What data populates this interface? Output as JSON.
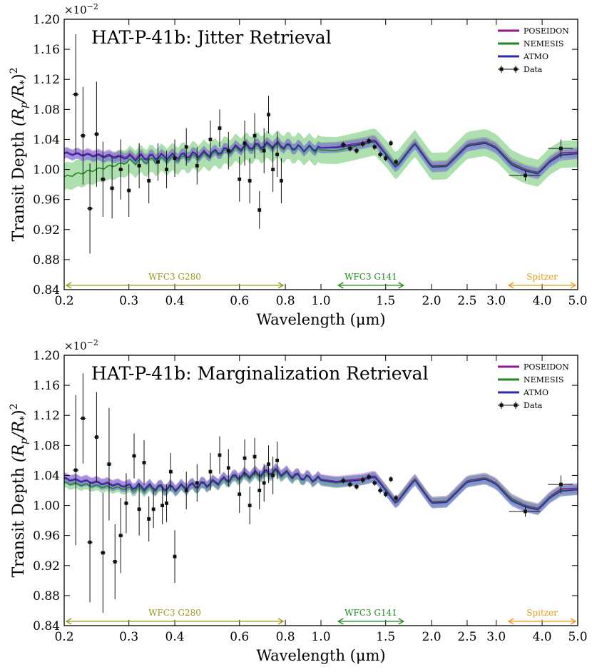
{
  "chart_data": [
    {
      "type": "line",
      "title": "HAT-P-41b: Jitter Retrieval",
      "xlabel": "Wavelength (μm)",
      "ylabel": "Transit Depth (R_p/R_*)^2",
      "ylabel_main": "Transit Depth ",
      "ylabel_math": "(R",
      "ylabel_sub_p": "p",
      "ylabel_slash": "/R",
      "ylabel_sub_star": "*",
      "ylabel_close": ")",
      "ylabel_sup": "2",
      "y_multiplier_base": "×10",
      "y_multiplier_exp": "−2",
      "x_scale": "log",
      "xlim": [
        0.2,
        5.0
      ],
      "ylim": [
        0.84,
        1.2
      ],
      "xticks": [
        0.2,
        0.3,
        0.4,
        0.6,
        0.8,
        1.0,
        1.5,
        2.0,
        2.5,
        3.0,
        4.0,
        5.0
      ],
      "xtick_labels": [
        "0.2",
        "0.3",
        "0.4",
        "0.6",
        "0.8",
        "1.0",
        "1.5",
        "2.0",
        "2.5",
        "3.0",
        "4.0",
        "5.0"
      ],
      "yticks": [
        0.84,
        0.88,
        0.92,
        0.96,
        1.0,
        1.04,
        1.08,
        1.12,
        1.16,
        1.2
      ],
      "ytick_labels": [
        "0.84",
        "0.88",
        "0.92",
        "0.96",
        "1.00",
        "1.04",
        "1.08",
        "1.12",
        "1.16",
        "1.20"
      ],
      "grid": false,
      "legend_position": "top-right",
      "legend": [
        "POSEIDON",
        "NEMESIS",
        "ATMO",
        "Data"
      ],
      "series": [
        {
          "name": "POSEIDON",
          "color": "#8b1a8b",
          "band": "#c77dcc",
          "x": [
            0.2,
            0.3,
            0.4,
            0.5,
            0.6,
            0.75,
            0.9,
            1.1,
            1.3,
            1.4,
            1.5,
            1.6,
            1.8,
            2.0,
            2.2,
            2.5,
            2.8,
            3.0,
            3.3,
            3.6,
            3.9,
            4.2,
            4.5,
            5.0
          ],
          "y": [
            1.022,
            1.017,
            1.018,
            1.022,
            1.03,
            1.034,
            1.028,
            1.03,
            1.036,
            1.04,
            1.022,
            1.004,
            1.036,
            1.005,
            1.006,
            1.033,
            1.037,
            1.03,
            1.009,
            1.0,
            0.996,
            1.012,
            1.022,
            1.023
          ]
        },
        {
          "name": "NEMESIS",
          "color": "#1f8a1f",
          "band": "#6cc56c",
          "x": [
            0.2,
            0.3,
            0.4,
            0.5,
            0.6,
            0.75,
            0.9,
            1.1,
            1.3,
            1.4,
            1.5,
            1.6,
            1.8,
            2.0,
            2.2,
            2.5,
            2.8,
            3.0,
            3.3,
            3.6,
            3.9,
            4.2,
            4.5,
            5.0
          ],
          "y": [
            0.99,
            1.01,
            1.014,
            1.019,
            1.027,
            1.031,
            1.027,
            1.025,
            1.033,
            1.037,
            1.022,
            1.004,
            1.035,
            1.004,
            1.005,
            1.032,
            1.036,
            1.029,
            1.008,
            0.999,
            0.995,
            1.011,
            1.02,
            1.021
          ]
        },
        {
          "name": "ATMO",
          "color": "#2b2bb0",
          "band": "#6f6fe0",
          "x": [
            0.2,
            0.3,
            0.4,
            0.5,
            0.6,
            0.75,
            0.9,
            1.1,
            1.3,
            1.4,
            1.5,
            1.6,
            1.8,
            2.0,
            2.2,
            2.5,
            2.8,
            3.0,
            3.3,
            3.6,
            3.9,
            4.2,
            4.5,
            5.0
          ],
          "y": [
            1.021,
            1.015,
            1.017,
            1.021,
            1.029,
            1.033,
            1.028,
            1.029,
            1.034,
            1.038,
            1.02,
            1.002,
            1.034,
            1.003,
            1.004,
            1.031,
            1.035,
            1.028,
            1.006,
            0.998,
            0.994,
            1.01,
            1.019,
            1.021
          ]
        },
        {
          "name": "Data",
          "color": "#111111",
          "x": [
            0.215,
            0.225,
            0.235,
            0.245,
            0.255,
            0.27,
            0.285,
            0.3,
            0.32,
            0.34,
            0.36,
            0.38,
            0.4,
            0.43,
            0.46,
            0.5,
            0.53,
            0.56,
            0.6,
            0.62,
            0.64,
            0.66,
            0.68,
            0.7,
            0.72,
            0.74,
            0.76,
            0.78,
            1.15,
            1.2,
            1.25,
            1.3,
            1.35,
            1.4,
            1.45,
            1.5,
            1.55,
            1.6,
            3.6,
            4.5
          ],
          "y": [
            1.1,
            1.045,
            0.948,
            1.047,
            0.987,
            0.975,
            1.0,
            0.972,
            1.005,
            0.985,
            1.01,
            1.0,
            1.015,
            1.03,
            1.005,
            1.04,
            1.055,
            1.025,
            0.987,
            1.035,
            0.985,
            1.045,
            0.946,
            1.025,
            1.073,
            1.0,
            1.02,
            0.985,
            1.033,
            1.028,
            1.025,
            1.034,
            1.038,
            1.03,
            1.02,
            1.015,
            1.035,
            1.01,
            0.992,
            1.028
          ],
          "yerr": [
            0.08,
            0.065,
            0.06,
            0.07,
            0.05,
            0.04,
            0.04,
            0.035,
            0.03,
            0.03,
            0.025,
            0.025,
            0.025,
            0.025,
            0.025,
            0.025,
            0.025,
            0.025,
            0.03,
            0.03,
            0.03,
            0.03,
            0.025,
            0.03,
            0.025,
            0.03,
            0.03,
            0.03,
            0.004,
            0.004,
            0.004,
            0.004,
            0.004,
            0.004,
            0.004,
            0.004,
            0.004,
            0.004,
            0.007,
            0.012
          ]
        }
      ],
      "annotations": [
        {
          "text": "WFC3 G280",
          "x_range": [
            0.2,
            0.8
          ],
          "color": "#9a9a1a"
        },
        {
          "text": "WFC3 G141",
          "x_range": [
            1.1,
            1.7
          ],
          "color": "#1f8a1f"
        },
        {
          "text": "Spitzer",
          "x_range": [
            3.2,
            5.0
          ],
          "color": "#e69a1a"
        }
      ]
    },
    {
      "type": "line",
      "title": "HAT-P-41b: Marginalization Retrieval",
      "xlabel": "Wavelength (μm)",
      "ylabel": "Transit Depth (R_p/R_*)^2",
      "ylabel_main": "Transit Depth ",
      "ylabel_math": "(R",
      "ylabel_sub_p": "p",
      "ylabel_slash": "/R",
      "ylabel_sub_star": "*",
      "ylabel_close": ")",
      "ylabel_sup": "2",
      "y_multiplier_base": "×10",
      "y_multiplier_exp": "−2",
      "x_scale": "log",
      "xlim": [
        0.2,
        5.0
      ],
      "ylim": [
        0.84,
        1.2
      ],
      "xticks": [
        0.2,
        0.3,
        0.4,
        0.6,
        0.8,
        1.0,
        1.5,
        2.0,
        2.5,
        3.0,
        4.0,
        5.0
      ],
      "xtick_labels": [
        "0.2",
        "0.3",
        "0.4",
        "0.6",
        "0.8",
        "1.0",
        "1.5",
        "2.0",
        "2.5",
        "3.0",
        "4.0",
        "5.0"
      ],
      "yticks": [
        0.84,
        0.88,
        0.92,
        0.96,
        1.0,
        1.04,
        1.08,
        1.12,
        1.16,
        1.2
      ],
      "ytick_labels": [
        "0.84",
        "0.88",
        "0.92",
        "0.96",
        "1.00",
        "1.04",
        "1.08",
        "1.12",
        "1.16",
        "1.20"
      ],
      "grid": false,
      "legend_position": "top-right",
      "legend": [
        "POSEIDON",
        "NEMESIS",
        "ATMO",
        "Data"
      ],
      "series": [
        {
          "name": "POSEIDON",
          "color": "#8b1a8b",
          "band": "#c77dcc",
          "x": [
            0.2,
            0.3,
            0.4,
            0.5,
            0.6,
            0.75,
            0.9,
            1.1,
            1.3,
            1.4,
            1.5,
            1.6,
            1.8,
            2.0,
            2.2,
            2.5,
            2.8,
            3.0,
            3.3,
            3.6,
            3.9,
            4.2,
            4.5,
            5.0
          ],
          "y": [
            1.036,
            1.026,
            1.024,
            1.03,
            1.04,
            1.046,
            1.038,
            1.032,
            1.036,
            1.04,
            1.022,
            1.004,
            1.036,
            1.005,
            1.006,
            1.033,
            1.037,
            1.03,
            1.009,
            1.0,
            0.996,
            1.012,
            1.022,
            1.023
          ]
        },
        {
          "name": "NEMESIS",
          "color": "#1f8a1f",
          "band": "#6cc56c",
          "x": [
            0.2,
            0.3,
            0.4,
            0.5,
            0.6,
            0.75,
            0.9,
            1.1,
            1.3,
            1.4,
            1.5,
            1.6,
            1.8,
            2.0,
            2.2,
            2.5,
            2.8,
            3.0,
            3.3,
            3.6,
            3.9,
            4.2,
            4.5,
            5.0
          ],
          "y": [
            1.03,
            1.022,
            1.022,
            1.028,
            1.037,
            1.043,
            1.036,
            1.03,
            1.034,
            1.038,
            1.021,
            1.003,
            1.035,
            1.004,
            1.005,
            1.032,
            1.036,
            1.029,
            1.008,
            0.999,
            0.995,
            1.011,
            1.02,
            1.021
          ]
        },
        {
          "name": "ATMO",
          "color": "#2b2bb0",
          "band": "#6f6fe0",
          "x": [
            0.2,
            0.3,
            0.4,
            0.5,
            0.6,
            0.75,
            0.9,
            1.1,
            1.3,
            1.4,
            1.5,
            1.6,
            1.8,
            2.0,
            2.2,
            2.5,
            2.8,
            3.0,
            3.3,
            3.6,
            3.9,
            4.2,
            4.5,
            5.0
          ],
          "y": [
            1.035,
            1.025,
            1.023,
            1.029,
            1.039,
            1.045,
            1.037,
            1.031,
            1.034,
            1.038,
            1.02,
            1.002,
            1.034,
            1.003,
            1.004,
            1.031,
            1.035,
            1.028,
            1.006,
            0.998,
            0.994,
            1.01,
            1.019,
            1.021
          ]
        },
        {
          "name": "Data",
          "color": "#111111",
          "x": [
            0.215,
            0.225,
            0.235,
            0.245,
            0.255,
            0.265,
            0.275,
            0.285,
            0.295,
            0.31,
            0.32,
            0.33,
            0.34,
            0.35,
            0.37,
            0.38,
            0.39,
            0.4,
            0.43,
            0.46,
            0.5,
            0.53,
            0.56,
            0.6,
            0.62,
            0.64,
            0.66,
            0.68,
            0.7,
            0.72,
            0.74,
            0.76,
            1.15,
            1.2,
            1.25,
            1.3,
            1.35,
            1.4,
            1.45,
            1.5,
            1.55,
            1.6,
            3.6,
            4.5
          ],
          "y": [
            1.047,
            1.116,
            0.951,
            1.091,
            0.937,
            1.055,
            0.925,
            0.96,
            1.003,
            1.066,
            0.995,
            1.057,
            0.982,
            0.995,
            1.0,
            1.003,
            1.045,
            0.932,
            1.02,
            1.03,
            1.045,
            1.067,
            1.05,
            1.015,
            1.063,
            1.0,
            1.065,
            1.02,
            1.03,
            1.055,
            1.04,
            1.06,
            1.033,
            1.028,
            1.025,
            1.034,
            1.038,
            1.03,
            1.02,
            1.015,
            1.035,
            1.01,
            0.992,
            1.028
          ],
          "yerr": [
            0.1,
            0.06,
            0.08,
            0.06,
            0.08,
            0.075,
            0.05,
            0.05,
            0.04,
            0.03,
            0.035,
            0.03,
            0.03,
            0.025,
            0.025,
            0.025,
            0.025,
            0.035,
            0.025,
            0.025,
            0.025,
            0.025,
            0.025,
            0.025,
            0.025,
            0.025,
            0.025,
            0.025,
            0.025,
            0.025,
            0.025,
            0.025,
            0.004,
            0.004,
            0.004,
            0.004,
            0.004,
            0.004,
            0.004,
            0.004,
            0.004,
            0.004,
            0.007,
            0.012
          ]
        }
      ],
      "annotations": [
        {
          "text": "WFC3 G280",
          "x_range": [
            0.2,
            0.8
          ],
          "color": "#9a9a1a"
        },
        {
          "text": "WFC3 G141",
          "x_range": [
            1.1,
            1.7
          ],
          "color": "#1f8a1f"
        },
        {
          "text": "Spitzer",
          "x_range": [
            3.2,
            5.0
          ],
          "color": "#e69a1a"
        }
      ]
    }
  ]
}
